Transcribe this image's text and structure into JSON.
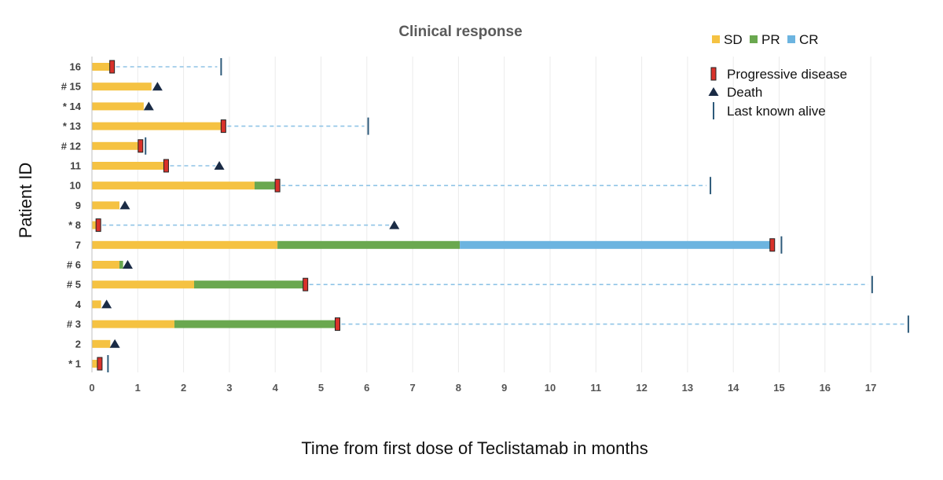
{
  "chart_data": {
    "type": "swimmer",
    "title": "Clinical response",
    "xlabel": "Time from first dose of Teclistamab in months",
    "ylabel": "Patient ID",
    "xlim": [
      0,
      17.8
    ],
    "x_ticks": [
      "0",
      "1",
      "2",
      "3",
      "4",
      "5",
      "6",
      "7",
      "8",
      "9",
      "10",
      "11",
      "12",
      "13",
      "14",
      "15",
      "16",
      "17"
    ],
    "response_legend": [
      {
        "key": "SD",
        "label": "SD",
        "color": "#f5c242"
      },
      {
        "key": "PR",
        "label": "PR",
        "color": "#6aa84f"
      },
      {
        "key": "CR",
        "label": "CR",
        "color": "#6cb4e0"
      }
    ],
    "event_legend": [
      {
        "key": "pd",
        "label": "Progressive disease",
        "color": "#d9322b"
      },
      {
        "key": "death",
        "label": "Death",
        "color": "#1a2b45"
      },
      {
        "key": "alive",
        "label": "Last known alive",
        "color": "#2d5a7a"
      }
    ],
    "colors": {
      "followup": "#8fc4e6",
      "pd_fill": "#d9322b",
      "pd_stroke": "#222222",
      "death": "#1a2b45",
      "alive": "#2d5a7a",
      "grid": "#ebebeb",
      "axis": "#bfbfbf"
    },
    "patients": [
      {
        "label": "16",
        "segments": [
          {
            "r": "SD",
            "from": 0,
            "to": 0.42
          }
        ],
        "pd": 0.44,
        "death": null,
        "alive": 2.82
      },
      {
        "label": "# 15",
        "segments": [
          {
            "r": "SD",
            "from": 0,
            "to": 1.3
          }
        ],
        "pd": null,
        "death": 1.43,
        "alive": null
      },
      {
        "label": "* 14",
        "segments": [
          {
            "r": "SD",
            "from": 0,
            "to": 1.13
          }
        ],
        "pd": null,
        "death": 1.24,
        "alive": null
      },
      {
        "label": "* 13",
        "segments": [
          {
            "r": "SD",
            "from": 0,
            "to": 2.85
          }
        ],
        "pd": 2.87,
        "death": null,
        "alive": 6.03
      },
      {
        "label": "# 12",
        "segments": [
          {
            "r": "SD",
            "from": 0,
            "to": 1.03
          }
        ],
        "pd": 1.06,
        "death": null,
        "alive": 1.17
      },
      {
        "label": "11",
        "segments": [
          {
            "r": "SD",
            "from": 0,
            "to": 1.6
          }
        ],
        "pd": 1.62,
        "death": 2.78,
        "alive": null
      },
      {
        "label": "10",
        "segments": [
          {
            "r": "SD",
            "from": 0,
            "to": 3.55
          },
          {
            "r": "PR",
            "from": 3.55,
            "to": 4.02
          }
        ],
        "pd": 4.05,
        "death": null,
        "alive": 13.5
      },
      {
        "label": "9",
        "segments": [
          {
            "r": "SD",
            "from": 0,
            "to": 0.6
          }
        ],
        "pd": null,
        "death": 0.72,
        "alive": null
      },
      {
        "label": "* 8",
        "segments": [
          {
            "r": "SD",
            "from": 0,
            "to": 0.1
          }
        ],
        "pd": 0.14,
        "death": 6.6,
        "alive": null
      },
      {
        "label": "7",
        "segments": [
          {
            "r": "SD",
            "from": 0,
            "to": 4.05
          },
          {
            "r": "PR",
            "from": 4.05,
            "to": 8.03
          },
          {
            "r": "CR",
            "from": 8.03,
            "to": 14.8
          }
        ],
        "pd": 14.85,
        "death": null,
        "alive": 15.05
      },
      {
        "label": "# 6",
        "segments": [
          {
            "r": "SD",
            "from": 0,
            "to": 0.6
          },
          {
            "r": "PR",
            "from": 0.6,
            "to": 0.68
          }
        ],
        "pd": null,
        "death": 0.78,
        "alive": null
      },
      {
        "label": "# 5",
        "segments": [
          {
            "r": "SD",
            "from": 0,
            "to": 2.23
          },
          {
            "r": "PR",
            "from": 2.23,
            "to": 4.63
          }
        ],
        "pd": 4.66,
        "death": null,
        "alive": 17.03
      },
      {
        "label": "4",
        "segments": [
          {
            "r": "SD",
            "from": 0,
            "to": 0.2
          }
        ],
        "pd": null,
        "death": 0.32,
        "alive": null
      },
      {
        "label": "# 3",
        "segments": [
          {
            "r": "SD",
            "from": 0,
            "to": 1.8
          },
          {
            "r": "PR",
            "from": 1.8,
            "to": 5.33
          }
        ],
        "pd": 5.36,
        "death": null,
        "alive": 17.82
      },
      {
        "label": "2",
        "segments": [
          {
            "r": "SD",
            "from": 0,
            "to": 0.4
          }
        ],
        "pd": null,
        "death": 0.5,
        "alive": null
      },
      {
        "label": "* 1",
        "segments": [
          {
            "r": "SD",
            "from": 0,
            "to": 0.13
          }
        ],
        "pd": 0.17,
        "death": null,
        "alive": 0.35
      }
    ]
  }
}
